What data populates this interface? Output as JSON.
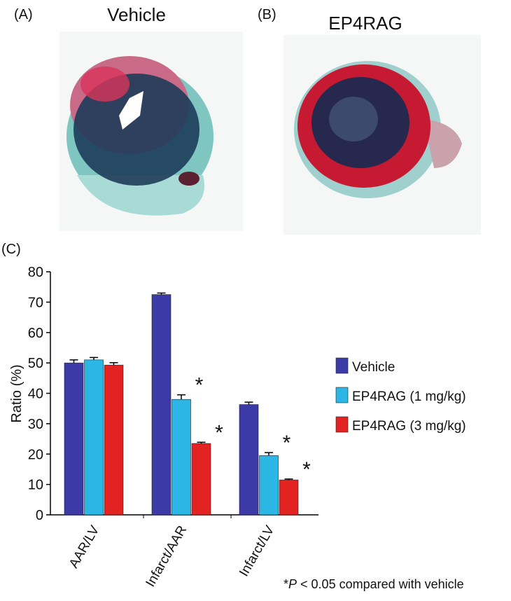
{
  "panels": [
    {
      "label": "(A)",
      "title": "Vehicle"
    },
    {
      "label": "(B)",
      "title": "EP4RAG"
    }
  ],
  "chart_data": {
    "type": "bar",
    "panel_label": "(C)",
    "y_label": "Ratio (%)",
    "categories": [
      "AAR/LV",
      "Infarct/AAR",
      "Infarct/LV"
    ],
    "series": [
      {
        "name": "Vehicle",
        "color": "#3b3aa6",
        "values": [
          50,
          72.5,
          36.3
        ],
        "errors": [
          1,
          0.5,
          0.8
        ],
        "significance": [
          null,
          null,
          null
        ]
      },
      {
        "name": "EP4RAG (1 mg/kg)",
        "color": "#2bb6e6",
        "values": [
          51,
          38,
          19.5
        ],
        "errors": [
          0.8,
          1.5,
          1
        ],
        "significance": [
          null,
          "*",
          "*"
        ]
      },
      {
        "name": "EP4RAG (3 mg/kg)",
        "color": "#e32222",
        "values": [
          49.3,
          23.5,
          11.5
        ],
        "errors": [
          0.8,
          0.4,
          0.3
        ],
        "significance": [
          null,
          "*",
          "*"
        ]
      }
    ],
    "ylim": [
      0,
      80
    ],
    "yticks": [
      0,
      10,
      20,
      30,
      40,
      50,
      60,
      70,
      80
    ],
    "note": [
      "*",
      "P",
      " < 0.05 compared with vehicle"
    ]
  }
}
